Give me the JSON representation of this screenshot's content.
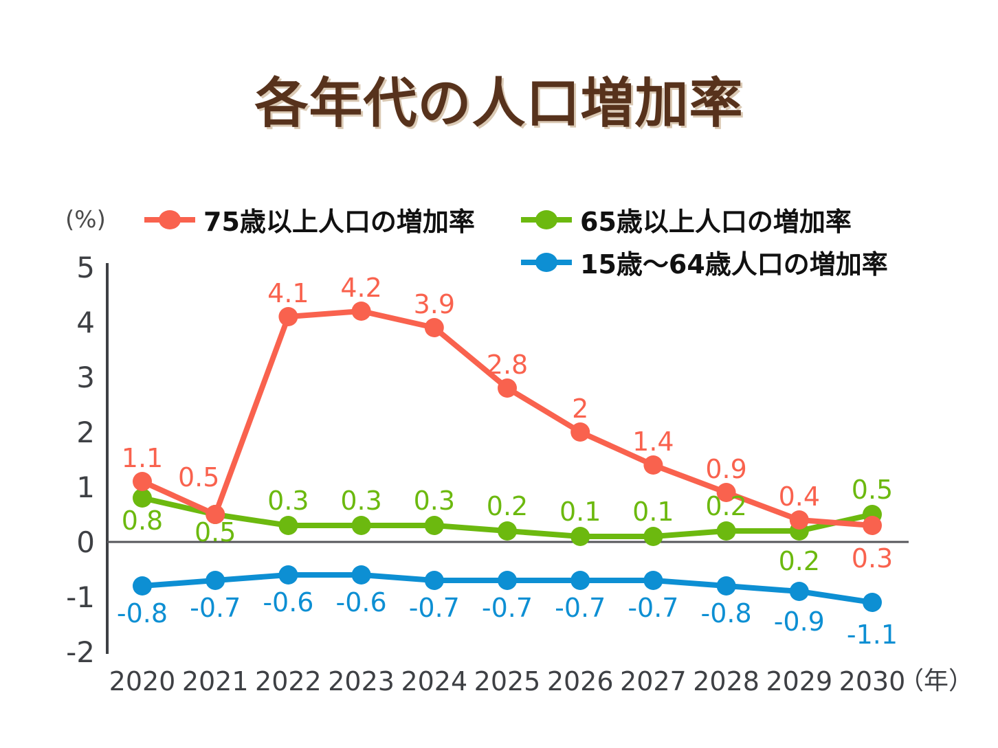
{
  "title": "各年代の人口増加率",
  "y_axis_unit_label": "(%)",
  "x_axis_unit_label": "（年）",
  "legend": [
    {
      "label": "75歳以上人口の増加率",
      "color": "#F9624E"
    },
    {
      "label": "65歳以上人口の増加率",
      "color": "#6CB90F"
    },
    {
      "label": "15歳〜64歳人口の増加率",
      "color": "#0D8FD3"
    }
  ],
  "colors": {
    "title": "#57321C",
    "axis": "#3E4044",
    "zero_line": "#55565A",
    "background": "#FFFFFF"
  },
  "chart_data": {
    "type": "line",
    "title": "各年代の人口増加率",
    "ylabel": "(%)",
    "xlabel_suffix": "（年）",
    "categories": [
      "2020",
      "2021",
      "2022",
      "2023",
      "2024",
      "2025",
      "2026",
      "2027",
      "2028",
      "2029",
      "2030"
    ],
    "series": [
      {
        "name": "75歳以上人口の増加率",
        "color": "#F9624E",
        "values": [
          1.1,
          0.5,
          4.1,
          4.2,
          3.9,
          2.8,
          2,
          1.4,
          0.9,
          0.4,
          0.3
        ]
      },
      {
        "name": "65歳以上人口の増加率",
        "color": "#6CB90F",
        "values": [
          0.8,
          0.5,
          0.3,
          0.3,
          0.3,
          0.2,
          0.1,
          0.1,
          0.2,
          0.2,
          0.5
        ]
      },
      {
        "name": "15歳〜64歳人口の増加率",
        "color": "#0D8FD3",
        "values": [
          -0.8,
          -0.7,
          -0.6,
          -0.6,
          -0.7,
          -0.7,
          -0.7,
          -0.7,
          -0.8,
          -0.9,
          -1.1
        ]
      }
    ],
    "ylim": [
      -2,
      5
    ],
    "yticks": [
      5,
      4,
      3,
      2,
      1,
      0,
      -1,
      -2
    ],
    "grid": false,
    "zero_line": true,
    "point_labels_visible": true,
    "legend_position": "top"
  }
}
